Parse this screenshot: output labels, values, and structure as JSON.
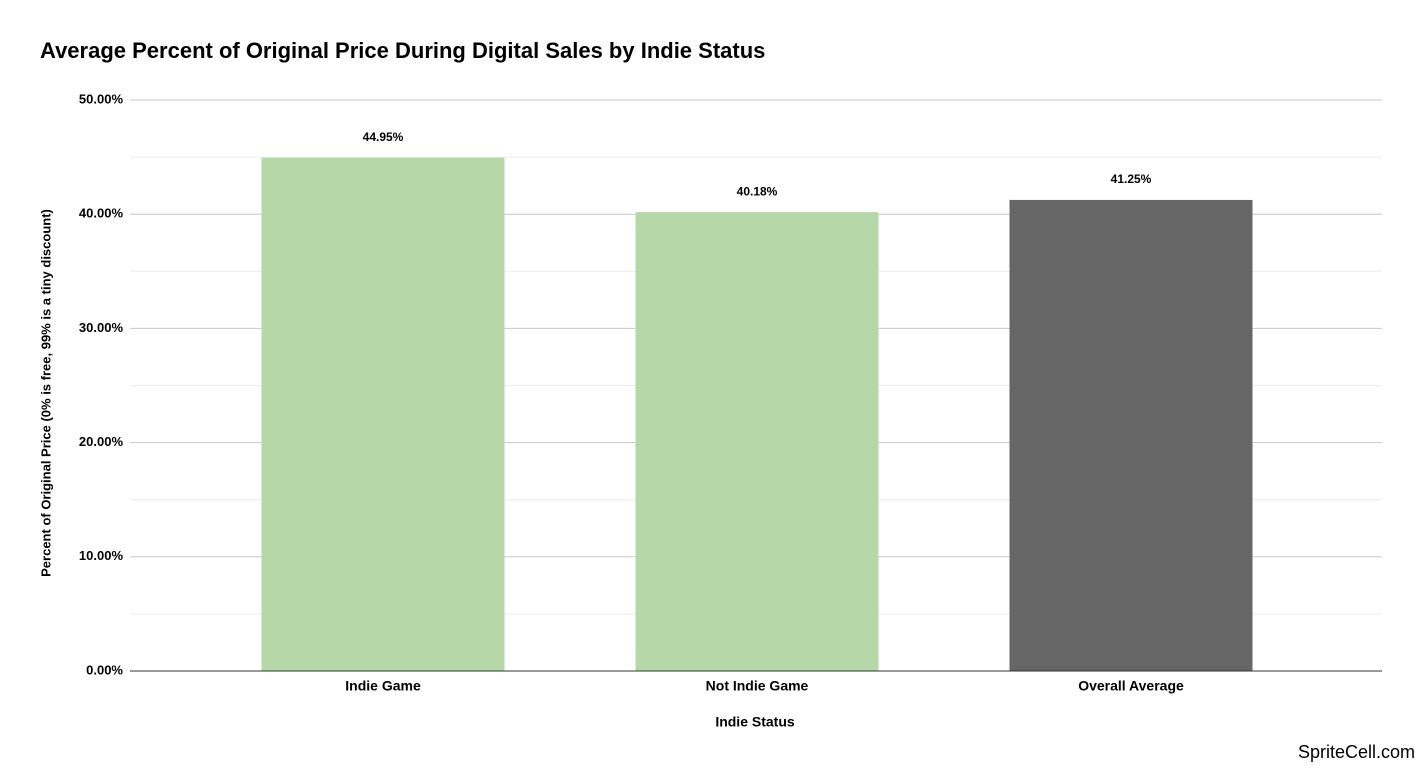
{
  "chart_data": {
    "type": "bar",
    "title": "Average Percent of Original Price During Digital Sales by Indie Status",
    "x_label": "Indie Status",
    "y_label": "Percent of Original Price (0% is free, 99% is a tiny discount)",
    "categories": [
      "Indie Game",
      "Not Indie Game",
      "Overall Average"
    ],
    "values": [
      44.95,
      40.18,
      41.25
    ],
    "value_labels": [
      "44.95%",
      "40.18%",
      "41.25%"
    ],
    "colors": [
      "#b6d7a8",
      "#b6d7a8",
      "#666666"
    ],
    "ylim": [
      0,
      50
    ],
    "yticks": [
      {
        "value": 0,
        "label": "0.00%"
      },
      {
        "value": 10,
        "label": "10.00%"
      },
      {
        "value": 20,
        "label": "20.00%"
      },
      {
        "value": 30,
        "label": "30.00%"
      },
      {
        "value": 40,
        "label": "40.00%"
      },
      {
        "value": 50,
        "label": "50.00%"
      }
    ],
    "minor_yticks": [
      5,
      15,
      25,
      35,
      45
    ],
    "grid": true
  },
  "watermark": "SpriteCell.com"
}
